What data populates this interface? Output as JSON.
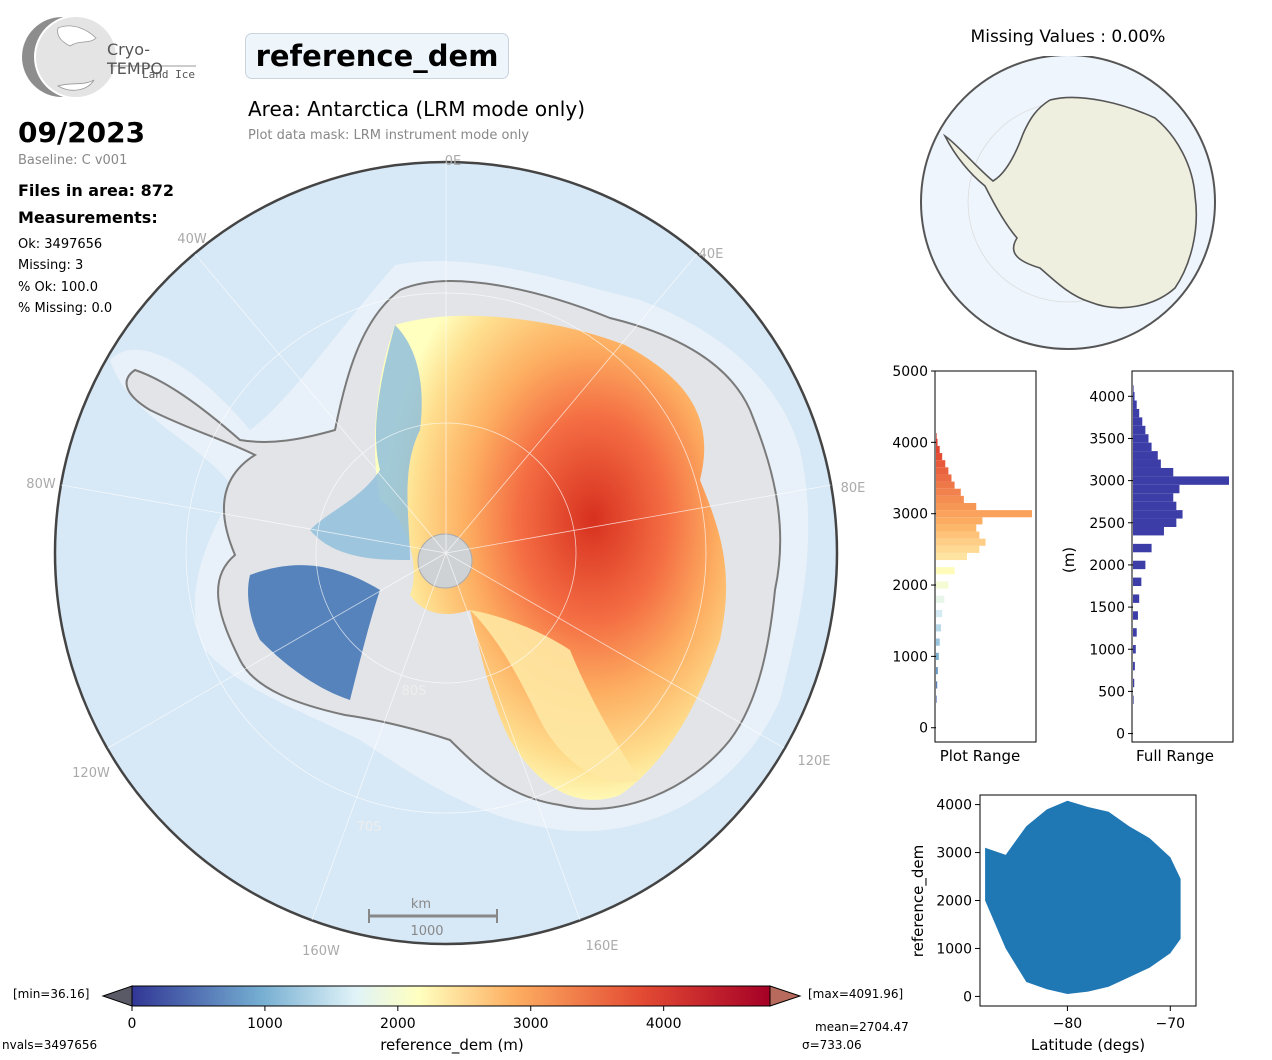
{
  "header": {
    "logo_name": "Cryo-TEMPO",
    "logo_sub": "Land Ice",
    "product": "reference_dem",
    "area": "Area: Antarctica (LRM mode only)",
    "mask": "Plot data mask: LRM instrument mode only",
    "date": "09/2023",
    "baseline": "Baseline: C v001",
    "files": "Files in area: 872",
    "measurements_heading": "Measurements:",
    "ok": "Ok: 3497656",
    "missing": "Missing: 3",
    "pct_ok": "% Ok: 100.0",
    "pct_missing": "% Missing: 0.0"
  },
  "map": {
    "meridians": {
      "0E": "0E",
      "40E": "40E",
      "80E": "80E",
      "120E": "120E",
      "160E": "160E",
      "160W": "160W",
      "120W": "120W",
      "80W": "80W",
      "40W": "40W"
    },
    "parallels": {
      "80S": "80S",
      "70S": "70S"
    },
    "scale_unit": "km",
    "scale_value": "1000",
    "colors": {
      "ocean": "#d7e8f6",
      "ice": "#e6e8eb",
      "coast": "#7a7a7a"
    }
  },
  "inset": {
    "title": "Missing Values : 0.00%",
    "colors": {
      "ocean": "#eef5fd",
      "land": "#efefdf"
    }
  },
  "colorbar": {
    "min_label": "[min=36.16]",
    "max_label": "[max=4091.96]",
    "ticks": [
      "0",
      "1000",
      "2000",
      "3000",
      "4000"
    ],
    "label": "reference_dem (m)",
    "mean": "mean=2704.47",
    "sigma": "σ=733.06",
    "nvals": "nvals=3497656"
  },
  "chart_data": [
    {
      "type": "bar",
      "orientation": "horizontal",
      "xlabel": "Plot Range",
      "ylabel": "",
      "ylim": [
        -200,
        5000
      ],
      "yticks": [
        "0",
        "1000",
        "2000",
        "3000",
        "4000",
        "5000"
      ],
      "colormap": "RdYlBu_r",
      "bins": [
        {
          "y": 400,
          "v": 0.2
        },
        {
          "y": 600,
          "v": 0.4
        },
        {
          "y": 800,
          "v": 0.6
        },
        {
          "y": 1000,
          "v": 0.9
        },
        {
          "y": 1200,
          "v": 1.2
        },
        {
          "y": 1400,
          "v": 1.6
        },
        {
          "y": 1600,
          "v": 2.0
        },
        {
          "y": 1800,
          "v": 2.7
        },
        {
          "y": 2000,
          "v": 4.0
        },
        {
          "y": 2200,
          "v": 6.0
        },
        {
          "y": 2400,
          "v": 10.0
        },
        {
          "y": 2500,
          "v": 14.0
        },
        {
          "y": 2600,
          "v": 16.0
        },
        {
          "y": 2700,
          "v": 14.0
        },
        {
          "y": 2800,
          "v": 13.0
        },
        {
          "y": 2900,
          "v": 15.0
        },
        {
          "y": 3000,
          "v": 31.0
        },
        {
          "y": 3100,
          "v": 13.0
        },
        {
          "y": 3200,
          "v": 9.0
        },
        {
          "y": 3300,
          "v": 8.0
        },
        {
          "y": 3400,
          "v": 6.0
        },
        {
          "y": 3500,
          "v": 5.0
        },
        {
          "y": 3600,
          "v": 4.0
        },
        {
          "y": 3700,
          "v": 3.0
        },
        {
          "y": 3800,
          "v": 2.0
        },
        {
          "y": 3900,
          "v": 1.2
        },
        {
          "y": 4000,
          "v": 0.5
        },
        {
          "y": 4080,
          "v": 0.2
        }
      ]
    },
    {
      "type": "bar",
      "orientation": "horizontal",
      "xlabel": "Full Range",
      "ylabel": "(m)",
      "ylim": [
        -100,
        4300
      ],
      "yticks": [
        "0",
        "500",
        "1000",
        "1500",
        "2000",
        "2500",
        "3000",
        "3500",
        "4000"
      ],
      "color": "#3d3da8",
      "bins": [
        {
          "y": 400,
          "v": 0.2
        },
        {
          "y": 600,
          "v": 0.4
        },
        {
          "y": 800,
          "v": 0.6
        },
        {
          "y": 1000,
          "v": 0.9
        },
        {
          "y": 1200,
          "v": 1.2
        },
        {
          "y": 1400,
          "v": 1.6
        },
        {
          "y": 1600,
          "v": 2.0
        },
        {
          "y": 1800,
          "v": 2.7
        },
        {
          "y": 2000,
          "v": 4.0
        },
        {
          "y": 2200,
          "v": 6.0
        },
        {
          "y": 2400,
          "v": 10.0
        },
        {
          "y": 2500,
          "v": 14.0
        },
        {
          "y": 2600,
          "v": 16.0
        },
        {
          "y": 2700,
          "v": 14.0
        },
        {
          "y": 2800,
          "v": 13.0
        },
        {
          "y": 2900,
          "v": 15.0
        },
        {
          "y": 3000,
          "v": 31.0
        },
        {
          "y": 3100,
          "v": 13.0
        },
        {
          "y": 3200,
          "v": 9.0
        },
        {
          "y": 3300,
          "v": 8.0
        },
        {
          "y": 3400,
          "v": 6.0
        },
        {
          "y": 3500,
          "v": 5.0
        },
        {
          "y": 3600,
          "v": 4.0
        },
        {
          "y": 3700,
          "v": 3.0
        },
        {
          "y": 3800,
          "v": 2.0
        },
        {
          "y": 3900,
          "v": 1.2
        },
        {
          "y": 4000,
          "v": 0.5
        },
        {
          "y": 4080,
          "v": 0.2
        }
      ]
    },
    {
      "type": "scatter",
      "xlabel": "Latitude (degs)",
      "ylabel": "reference_dem",
      "xlim": [
        -88.5,
        -67.5
      ],
      "ylim": [
        -200,
        4200
      ],
      "xticks": [
        "−80",
        "−70"
      ],
      "yticks": [
        "0",
        "1000",
        "2000",
        "3000",
        "4000"
      ],
      "color": "#1f77b4",
      "envelope_top": [
        [
          -88,
          3100
        ],
        [
          -86,
          2950
        ],
        [
          -84,
          3550
        ],
        [
          -82,
          3900
        ],
        [
          -80,
          4080
        ],
        [
          -78,
          3950
        ],
        [
          -76,
          3850
        ],
        [
          -74,
          3550
        ],
        [
          -72,
          3300
        ],
        [
          -70,
          2900
        ],
        [
          -69,
          2450
        ]
      ],
      "envelope_bottom": [
        [
          -69,
          1200
        ],
        [
          -70,
          900
        ],
        [
          -72,
          600
        ],
        [
          -74,
          400
        ],
        [
          -76,
          200
        ],
        [
          -78,
          100
        ],
        [
          -80,
          50
        ],
        [
          -82,
          150
        ],
        [
          -84,
          300
        ],
        [
          -86,
          1000
        ],
        [
          -88,
          2000
        ]
      ]
    }
  ]
}
